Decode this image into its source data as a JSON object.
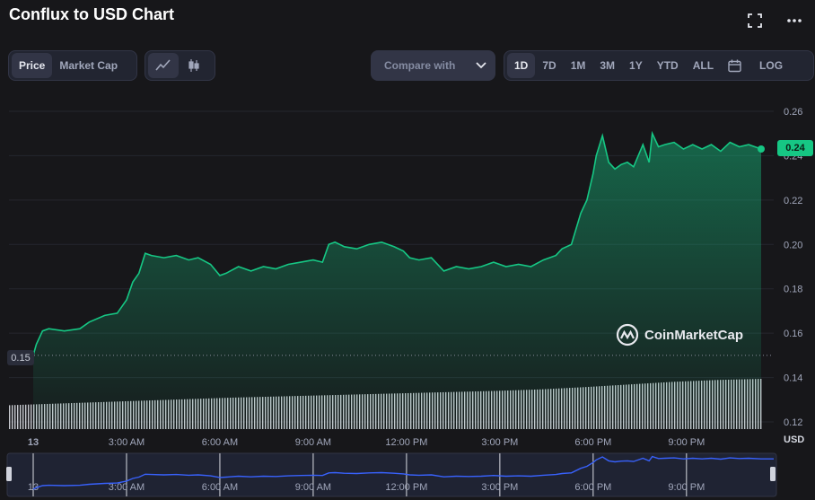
{
  "title": "Conflux to USD Chart",
  "header_icons": [
    "fullscreen-icon",
    "more-icon"
  ],
  "tabs": {
    "price": "Price",
    "market_cap": "Market Cap"
  },
  "chart_type_icons": [
    "line-chart-icon",
    "candlestick-icon"
  ],
  "compare_label": "Compare with",
  "ranges": [
    "1D",
    "7D",
    "1M",
    "3M",
    "1Y",
    "YTD",
    "ALL"
  ],
  "active_range": "1D",
  "log_label": "LOG",
  "current_price_label": "0.24",
  "low_price_label": "0.15",
  "currency_label": "USD",
  "watermark": "CoinMarketCap",
  "colors": {
    "up": "#16c784",
    "navigator_line": "#3861fb",
    "background": "#17171a"
  },
  "chart_data": {
    "type": "area",
    "y_ticks": [
      "0.26",
      "0.24",
      "0.22",
      "0.20",
      "0.18",
      "0.16",
      "0.14",
      "0.12"
    ],
    "ylim": [
      0.12,
      0.26
    ],
    "x_ticks": [
      {
        "h": 0,
        "label": "13"
      },
      {
        "h": 3,
        "label": "3:00 AM"
      },
      {
        "h": 6,
        "label": "6:00 AM"
      },
      {
        "h": 9,
        "label": "9:00 AM"
      },
      {
        "h": 12,
        "label": "12:00 PM"
      },
      {
        "h": 15,
        "label": "3:00 PM"
      },
      {
        "h": 18,
        "label": "6:00 PM"
      },
      {
        "h": 21,
        "label": "9:00 PM"
      }
    ],
    "xlim": [
      0,
      23.4
    ],
    "low_reference": 0.15,
    "series": [
      {
        "x": [
          0.0,
          0.1,
          0.3,
          0.5,
          1.0,
          1.5,
          1.8,
          2.3,
          2.7,
          3.0,
          3.2,
          3.4,
          3.6,
          3.8,
          4.2,
          4.6,
          5.0,
          5.3,
          5.7,
          6.0,
          6.2,
          6.6,
          7.0,
          7.4,
          7.8,
          8.2,
          8.6,
          9.0,
          9.3,
          9.5,
          9.7,
          10.0,
          10.4,
          10.8,
          11.2,
          11.6,
          11.9,
          12.1,
          12.4,
          12.8,
          13.2,
          13.6,
          14.0,
          14.4,
          14.8,
          15.2,
          15.6,
          16.0,
          16.4,
          16.8,
          17.0,
          17.3,
          17.6,
          17.8,
          18.0,
          18.1,
          18.3,
          18.5,
          18.7,
          18.9,
          19.1,
          19.3,
          19.6,
          19.8,
          19.9,
          20.1,
          20.3,
          20.6,
          20.9,
          21.2,
          21.5,
          21.8,
          22.1,
          22.4,
          22.7,
          23.0,
          23.4
        ],
        "y": [
          0.15,
          0.155,
          0.161,
          0.162,
          0.161,
          0.162,
          0.165,
          0.168,
          0.169,
          0.175,
          0.183,
          0.187,
          0.196,
          0.195,
          0.194,
          0.195,
          0.193,
          0.194,
          0.191,
          0.186,
          0.187,
          0.19,
          0.188,
          0.19,
          0.189,
          0.191,
          0.192,
          0.193,
          0.192,
          0.2,
          0.201,
          0.199,
          0.198,
          0.2,
          0.201,
          0.199,
          0.197,
          0.194,
          0.193,
          0.194,
          0.188,
          0.19,
          0.189,
          0.19,
          0.192,
          0.19,
          0.191,
          0.19,
          0.193,
          0.195,
          0.198,
          0.2,
          0.214,
          0.22,
          0.232,
          0.24,
          0.249,
          0.237,
          0.234,
          0.236,
          0.237,
          0.235,
          0.245,
          0.237,
          0.25,
          0.244,
          0.245,
          0.246,
          0.243,
          0.245,
          0.243,
          0.245,
          0.242,
          0.246,
          0.244,
          0.245,
          0.243
        ]
      }
    ],
    "volume_profile": [
      0.3,
      0.34,
      0.38,
      0.42,
      0.46,
      0.5,
      0.53,
      0.56,
      0.59,
      0.62,
      0.65,
      0.68,
      0.72,
      0.78,
      0.85,
      0.92,
      0.97,
      1.0
    ]
  }
}
